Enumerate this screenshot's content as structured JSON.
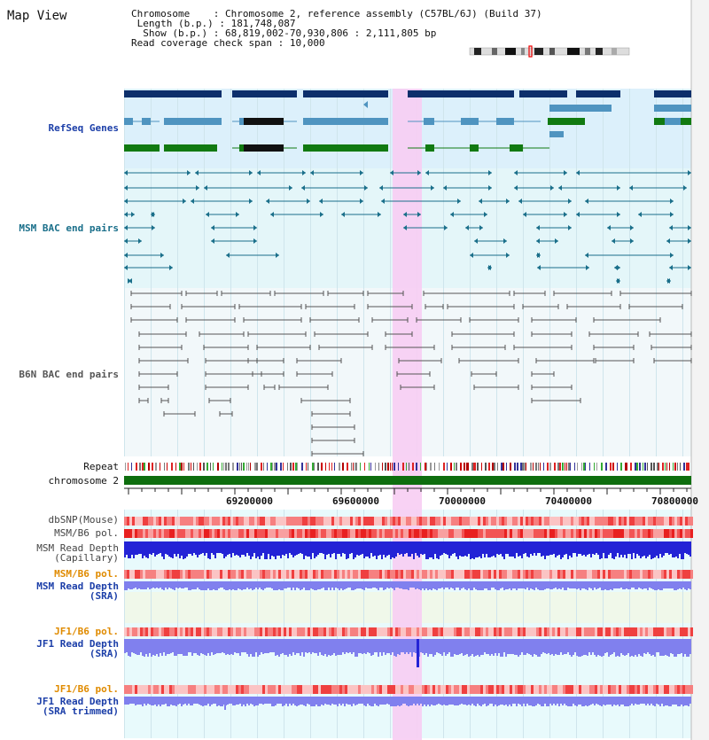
{
  "panel_title": "Map View",
  "info": {
    "chromosome_label": "Chromosome",
    "chromosome_value": "Chromosome 2, reference assembly (C57BL/6J) (Build 37)",
    "length_label": "Length (b.p.)",
    "length_value": "181,748,087",
    "show_label": "Show (b.p.)",
    "show_value": "68,819,002-70,930,806 : 2,111,805 bp",
    "coverage_label": "Read coverage check span",
    "coverage_value": "10,000"
  },
  "tracks": {
    "refseq": "RefSeq Genes",
    "msm_bac": "MSM BAC end pairs",
    "b6n_bac": "B6N BAC end pairs",
    "repeat": "Repeat",
    "chromosome": "chromosome 2",
    "dbsnp": "dbSNP(Mouse)",
    "msm_b6_pol": "MSM/B6 pol.",
    "msm_depth_cap_1": "MSM Read Depth",
    "msm_depth_cap_2": "(Capillary)",
    "msm_b6_pol_2": "MSM/B6 pol.",
    "msm_depth_sra_1": "MSM Read Depth",
    "msm_depth_sra_2": "(SRA)",
    "jf1_b6_pol": "JF1/B6 pol.",
    "jf1_depth_sra_1": "JF1 Read Depth",
    "jf1_depth_sra_2": "(SRA)",
    "jf1_b6_pol_2": "JF1/B6 pol.",
    "jf1_depth_trim_1": "JF1 Read Depth",
    "jf1_depth_trim_2": "(SRA trimmed)"
  },
  "axis_ticks": [
    "69200000",
    "69600000",
    "70000000",
    "70400000",
    "70800000"
  ],
  "colors": {
    "refseq_dark": "#0d2f6b",
    "refseq_mid": "#4f94c0",
    "refseq_green": "#117a11",
    "msm_bac": "#1a6f8a",
    "b6n_bac": "#555555",
    "highlight": "#f7cdf3",
    "label_blue": "#1b3ea8",
    "label_orange": "#e08b00",
    "depth_blue": "#2323d6",
    "depth_light": "#8080ee"
  }
}
